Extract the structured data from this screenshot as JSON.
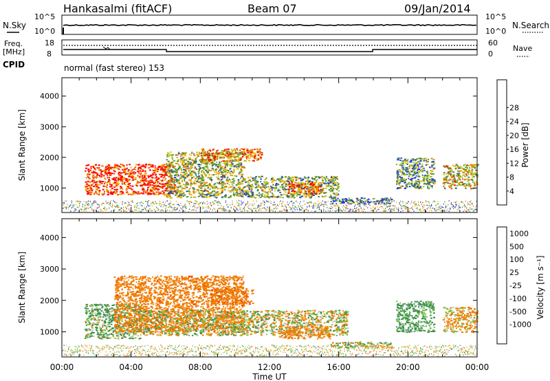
{
  "header": {
    "station": "Hankasalmi (fitACF)",
    "beam": "Beam 07",
    "date": "09/Jan/2014"
  },
  "top_panel": {
    "left_label": "N.Sky",
    "right_label": "N.Search",
    "ticks": [
      "10^5",
      "10^0"
    ]
  },
  "freq_panel": {
    "left_label": "Freq.",
    "left_unit": "[MHz]",
    "right_label": "Nave",
    "left_ticks": [
      "18",
      "8"
    ],
    "right_ticks": [
      "60",
      "0"
    ],
    "cpid_label": "CPID",
    "cpid_text": "normal (fast stereo) 153"
  },
  "colors": {
    "power": [
      "#1f2bff",
      "#2b46a8",
      "#3f7f55",
      "#5aa03e",
      "#b0c81e",
      "#f0b000",
      "#f07a00",
      "#e62a00",
      "#ff0000"
    ],
    "velocity": [
      "#1f44c8",
      "#3f6fae",
      "#3f8f4f",
      "#6cc640",
      "#c8c8c0",
      "#f0a020",
      "#f07a00",
      "#f04a00",
      "#ff0000"
    ],
    "axis": "#000000"
  },
  "chart_data": [
    {
      "type": "heatmap",
      "panel": "power",
      "xlabel": "Time UT",
      "ylabel": "Slant Range [km]",
      "x_ticks": [
        "00:00",
        "04:00",
        "08:00",
        "12:00",
        "16:00",
        "20:00",
        "00:00"
      ],
      "xlim": [
        0,
        24
      ],
      "y_ticks": [
        1000,
        2000,
        3000,
        4000
      ],
      "ylim": [
        200,
        4600
      ],
      "colorbar": {
        "label": "Power [dB]",
        "ticks": [
          "4",
          "8",
          "12",
          "16",
          "20",
          "24",
          "28"
        ],
        "range": [
          0,
          30
        ]
      },
      "regions": [
        {
          "t": [
            1.3,
            6.5
          ],
          "r": [
            800,
            1800
          ],
          "level": 26
        },
        {
          "t": [
            6.0,
            10.5
          ],
          "r": [
            700,
            2200
          ],
          "level": 14
        },
        {
          "t": [
            8.0,
            11.5
          ],
          "r": [
            1900,
            2300
          ],
          "level": 22
        },
        {
          "t": [
            10.5,
            16.0
          ],
          "r": [
            700,
            1400
          ],
          "level": 12
        },
        {
          "t": [
            13.0,
            15.0
          ],
          "r": [
            800,
            1200
          ],
          "level": 25
        },
        {
          "t": [
            15.5,
            19.0
          ],
          "r": [
            500,
            700
          ],
          "level": 8
        },
        {
          "t": [
            19.3,
            21.5
          ],
          "r": [
            1000,
            2000
          ],
          "level": 10
        },
        {
          "t": [
            22.0,
            24.0
          ],
          "r": [
            1000,
            1800
          ],
          "level": 16
        }
      ]
    },
    {
      "type": "heatmap",
      "panel": "velocity",
      "xlabel": "Time UT",
      "ylabel": "Slant Range [km]",
      "x_ticks": [
        "00:00",
        "04:00",
        "08:00",
        "12:00",
        "16:00",
        "20:00",
        "00:00"
      ],
      "xlim": [
        0,
        24
      ],
      "y_ticks": [
        1000,
        2000,
        3000,
        4000
      ],
      "ylim": [
        200,
        4600
      ],
      "colorbar": {
        "label": "Velocity [m s⁻¹]",
        "ticks": [
          "1000",
          "500",
          "100",
          "25",
          "-25",
          "-100",
          "-500",
          "-1000"
        ],
        "range": [
          -1000,
          1000
        ]
      },
      "regions": [
        {
          "t": [
            1.3,
            4.5
          ],
          "r": [
            800,
            1900
          ],
          "level": 150
        },
        {
          "t": [
            3.0,
            10.5
          ],
          "r": [
            1000,
            2800
          ],
          "level": -300
        },
        {
          "t": [
            4.5,
            16.5
          ],
          "r": [
            900,
            1700
          ],
          "level": 0
        },
        {
          "t": [
            8.5,
            11.0
          ],
          "r": [
            1900,
            2400
          ],
          "level": -350
        },
        {
          "t": [
            12.5,
            15.5
          ],
          "r": [
            800,
            1200
          ],
          "level": -200
        },
        {
          "t": [
            15.5,
            19.0
          ],
          "r": [
            500,
            700
          ],
          "level": 0
        },
        {
          "t": [
            19.3,
            21.5
          ],
          "r": [
            1000,
            2000
          ],
          "level": 200
        },
        {
          "t": [
            22.0,
            24.0
          ],
          "r": [
            1000,
            1800
          ],
          "level": -120
        }
      ]
    }
  ]
}
